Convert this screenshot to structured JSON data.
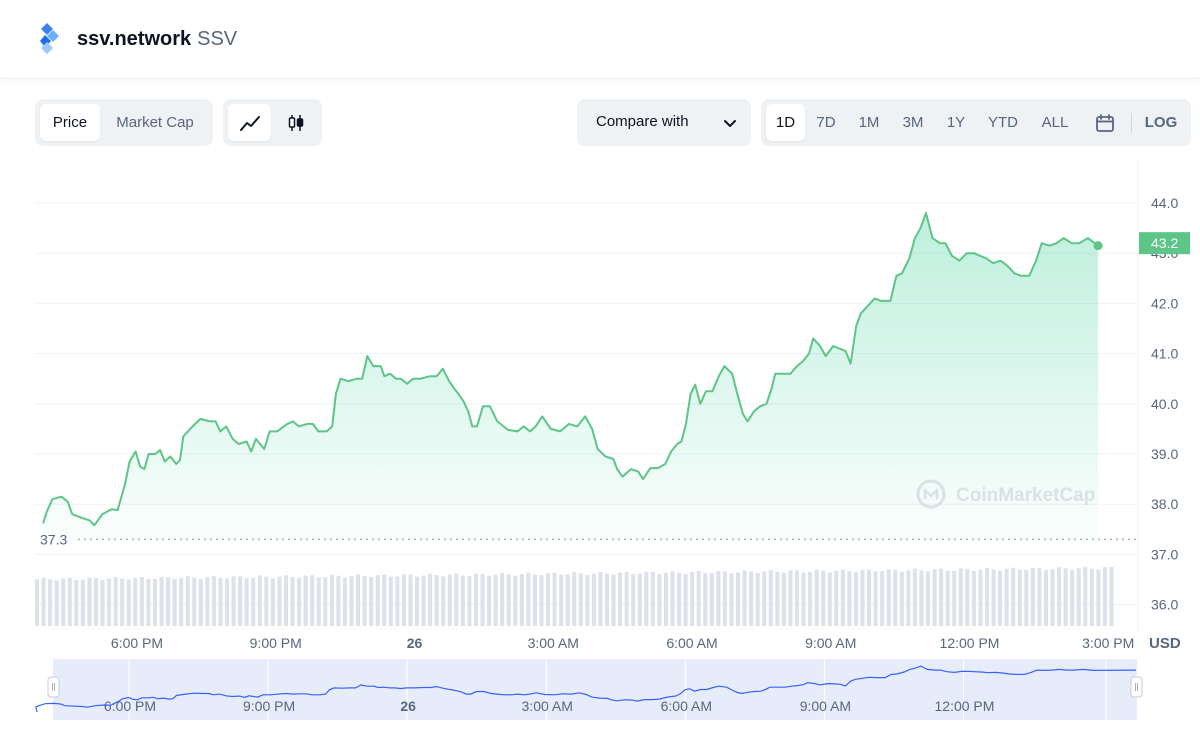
{
  "header": {
    "name": "ssv.network",
    "symbol": "SSV",
    "logo_icon": "ssv-diamond-logo-icon"
  },
  "toolbar": {
    "data_type_tabs": [
      {
        "label": "Price",
        "active": true
      },
      {
        "label": "Market Cap",
        "active": false
      }
    ],
    "chart_types": [
      {
        "icon": "line-chart-icon",
        "active": true
      },
      {
        "icon": "candlestick-icon",
        "active": false
      }
    ],
    "compare_label": "Compare with",
    "ranges": [
      "1D",
      "7D",
      "1M",
      "3M",
      "1Y",
      "YTD",
      "ALL"
    ],
    "active_range": "1D",
    "calendar_icon": "calendar-icon",
    "log_label": "LOG"
  },
  "chart_data": {
    "type": "area",
    "title": "",
    "xlabel": "",
    "ylabel": "USD",
    "unit": "USD",
    "y_ticks": [
      "44.0",
      "43.0",
      "42.0",
      "41.0",
      "40.0",
      "39.0",
      "38.0",
      "37.0",
      "36.0"
    ],
    "ylim": [
      35.6,
      44.9
    ],
    "x_ticks": [
      "6:00 PM",
      "9:00 PM",
      "26",
      "3:00 AM",
      "6:00 AM",
      "9:00 AM",
      "12:00 PM",
      "3:00 PM"
    ],
    "x_tick_hours": [
      18,
      21,
      24,
      27,
      30,
      33,
      36,
      39
    ],
    "current_price_label": "43.2",
    "open_price_label": "37.3",
    "open_price": 37.3,
    "watermark": "CoinMarketCap",
    "series": [
      {
        "values": [
          {
            "t": 15.97,
            "y": 37.62
          },
          {
            "t": 16.05,
            "y": 37.85
          },
          {
            "t": 16.17,
            "y": 38.1
          },
          {
            "t": 16.37,
            "y": 38.15
          },
          {
            "t": 16.5,
            "y": 38.05
          },
          {
            "t": 16.6,
            "y": 37.8
          },
          {
            "t": 16.8,
            "y": 37.73
          },
          {
            "t": 16.97,
            "y": 37.68
          },
          {
            "t": 17.08,
            "y": 37.58
          },
          {
            "t": 17.25,
            "y": 37.8
          },
          {
            "t": 17.45,
            "y": 37.9
          },
          {
            "t": 17.58,
            "y": 37.88
          },
          {
            "t": 17.74,
            "y": 38.4
          },
          {
            "t": 17.84,
            "y": 38.85
          },
          {
            "t": 17.97,
            "y": 39.05
          },
          {
            "t": 18.07,
            "y": 38.75
          },
          {
            "t": 18.16,
            "y": 38.7
          },
          {
            "t": 18.25,
            "y": 39.0
          },
          {
            "t": 18.4,
            "y": 39.0
          },
          {
            "t": 18.5,
            "y": 39.08
          },
          {
            "t": 18.6,
            "y": 38.85
          },
          {
            "t": 18.72,
            "y": 38.95
          },
          {
            "t": 18.85,
            "y": 38.8
          },
          {
            "t": 18.93,
            "y": 38.88
          },
          {
            "t": 19.0,
            "y": 39.35
          },
          {
            "t": 19.2,
            "y": 39.55
          },
          {
            "t": 19.37,
            "y": 39.7
          },
          {
            "t": 19.58,
            "y": 39.65
          },
          {
            "t": 19.7,
            "y": 39.65
          },
          {
            "t": 19.8,
            "y": 39.45
          },
          {
            "t": 19.93,
            "y": 39.55
          },
          {
            "t": 20.07,
            "y": 39.3
          },
          {
            "t": 20.2,
            "y": 39.2
          },
          {
            "t": 20.37,
            "y": 39.25
          },
          {
            "t": 20.47,
            "y": 39.05
          },
          {
            "t": 20.57,
            "y": 39.3
          },
          {
            "t": 20.75,
            "y": 39.1
          },
          {
            "t": 20.87,
            "y": 39.45
          },
          {
            "t": 21.03,
            "y": 39.45
          },
          {
            "t": 21.25,
            "y": 39.6
          },
          {
            "t": 21.37,
            "y": 39.65
          },
          {
            "t": 21.5,
            "y": 39.55
          },
          {
            "t": 21.68,
            "y": 39.6
          },
          {
            "t": 21.8,
            "y": 39.6
          },
          {
            "t": 21.92,
            "y": 39.45
          },
          {
            "t": 22.1,
            "y": 39.45
          },
          {
            "t": 22.22,
            "y": 39.55
          },
          {
            "t": 22.3,
            "y": 40.2
          },
          {
            "t": 22.4,
            "y": 40.5
          },
          {
            "t": 22.57,
            "y": 40.45
          },
          {
            "t": 22.75,
            "y": 40.5
          },
          {
            "t": 22.87,
            "y": 40.5
          },
          {
            "t": 22.98,
            "y": 40.95
          },
          {
            "t": 23.11,
            "y": 40.75
          },
          {
            "t": 23.27,
            "y": 40.75
          },
          {
            "t": 23.35,
            "y": 40.55
          },
          {
            "t": 23.47,
            "y": 40.6
          },
          {
            "t": 23.6,
            "y": 40.5
          },
          {
            "t": 23.7,
            "y": 40.5
          },
          {
            "t": 23.84,
            "y": 40.4
          },
          {
            "t": 23.97,
            "y": 40.5
          },
          {
            "t": 24.12,
            "y": 40.5
          },
          {
            "t": 24.34,
            "y": 40.55
          },
          {
            "t": 24.48,
            "y": 40.55
          },
          {
            "t": 24.61,
            "y": 40.7
          },
          {
            "t": 24.75,
            "y": 40.45
          },
          {
            "t": 24.86,
            "y": 40.3
          },
          {
            "t": 24.95,
            "y": 40.2
          },
          {
            "t": 25.06,
            "y": 40.05
          },
          {
            "t": 25.16,
            "y": 39.85
          },
          {
            "t": 25.25,
            "y": 39.55
          },
          {
            "t": 25.35,
            "y": 39.55
          },
          {
            "t": 25.48,
            "y": 39.95
          },
          {
            "t": 25.63,
            "y": 39.95
          },
          {
            "t": 25.79,
            "y": 39.65
          },
          {
            "t": 26.02,
            "y": 39.48
          },
          {
            "t": 26.23,
            "y": 39.45
          },
          {
            "t": 26.36,
            "y": 39.55
          },
          {
            "t": 26.5,
            "y": 39.45
          },
          {
            "t": 26.62,
            "y": 39.55
          },
          {
            "t": 26.76,
            "y": 39.75
          },
          {
            "t": 26.95,
            "y": 39.5
          },
          {
            "t": 27.15,
            "y": 39.45
          },
          {
            "t": 27.34,
            "y": 39.6
          },
          {
            "t": 27.52,
            "y": 39.55
          },
          {
            "t": 27.69,
            "y": 39.75
          },
          {
            "t": 27.84,
            "y": 39.5
          },
          {
            "t": 27.96,
            "y": 39.1
          },
          {
            "t": 28.13,
            "y": 38.95
          },
          {
            "t": 28.3,
            "y": 38.9
          },
          {
            "t": 28.38,
            "y": 38.7
          },
          {
            "t": 28.5,
            "y": 38.55
          },
          {
            "t": 28.68,
            "y": 38.7
          },
          {
            "t": 28.84,
            "y": 38.65
          },
          {
            "t": 28.94,
            "y": 38.5
          },
          {
            "t": 29.1,
            "y": 38.72
          },
          {
            "t": 29.26,
            "y": 38.72
          },
          {
            "t": 29.42,
            "y": 38.8
          },
          {
            "t": 29.55,
            "y": 39.05
          },
          {
            "t": 29.68,
            "y": 39.2
          },
          {
            "t": 29.77,
            "y": 39.25
          },
          {
            "t": 29.87,
            "y": 39.6
          },
          {
            "t": 29.97,
            "y": 40.2
          },
          {
            "t": 30.07,
            "y": 40.38
          },
          {
            "t": 30.18,
            "y": 40.0
          },
          {
            "t": 30.3,
            "y": 40.25
          },
          {
            "t": 30.44,
            "y": 40.25
          },
          {
            "t": 30.58,
            "y": 40.55
          },
          {
            "t": 30.7,
            "y": 40.75
          },
          {
            "t": 30.87,
            "y": 40.6
          },
          {
            "t": 30.98,
            "y": 40.2
          },
          {
            "t": 31.1,
            "y": 39.8
          },
          {
            "t": 31.2,
            "y": 39.65
          },
          {
            "t": 31.34,
            "y": 39.85
          },
          {
            "t": 31.47,
            "y": 39.95
          },
          {
            "t": 31.61,
            "y": 40.0
          },
          {
            "t": 31.72,
            "y": 40.3
          },
          {
            "t": 31.8,
            "y": 40.6
          },
          {
            "t": 31.95,
            "y": 40.6
          },
          {
            "t": 32.13,
            "y": 40.6
          },
          {
            "t": 32.27,
            "y": 40.75
          },
          {
            "t": 32.4,
            "y": 40.85
          },
          {
            "t": 32.53,
            "y": 41.0
          },
          {
            "t": 32.62,
            "y": 41.3
          },
          {
            "t": 32.77,
            "y": 41.15
          },
          {
            "t": 32.89,
            "y": 40.95
          },
          {
            "t": 33.05,
            "y": 41.15
          },
          {
            "t": 33.19,
            "y": 41.1
          },
          {
            "t": 33.32,
            "y": 41.05
          },
          {
            "t": 33.43,
            "y": 40.8
          },
          {
            "t": 33.55,
            "y": 41.55
          },
          {
            "t": 33.65,
            "y": 41.8
          },
          {
            "t": 33.8,
            "y": 41.95
          },
          {
            "t": 33.95,
            "y": 42.1
          },
          {
            "t": 34.09,
            "y": 42.05
          },
          {
            "t": 34.29,
            "y": 42.05
          },
          {
            "t": 34.42,
            "y": 42.55
          },
          {
            "t": 34.54,
            "y": 42.6
          },
          {
            "t": 34.7,
            "y": 42.9
          },
          {
            "t": 34.82,
            "y": 43.3
          },
          {
            "t": 34.94,
            "y": 43.5
          },
          {
            "t": 35.06,
            "y": 43.8
          },
          {
            "t": 35.2,
            "y": 43.3
          },
          {
            "t": 35.36,
            "y": 43.2
          },
          {
            "t": 35.48,
            "y": 43.2
          },
          {
            "t": 35.62,
            "y": 42.95
          },
          {
            "t": 35.78,
            "y": 42.85
          },
          {
            "t": 35.94,
            "y": 43.0
          },
          {
            "t": 36.1,
            "y": 43.0
          },
          {
            "t": 36.22,
            "y": 42.95
          },
          {
            "t": 36.36,
            "y": 42.9
          },
          {
            "t": 36.51,
            "y": 42.8
          },
          {
            "t": 36.67,
            "y": 42.85
          },
          {
            "t": 36.82,
            "y": 42.75
          },
          {
            "t": 36.97,
            "y": 42.6
          },
          {
            "t": 37.11,
            "y": 42.55
          },
          {
            "t": 37.29,
            "y": 42.55
          },
          {
            "t": 37.44,
            "y": 42.85
          },
          {
            "t": 37.56,
            "y": 43.2
          },
          {
            "t": 37.73,
            "y": 43.15
          },
          {
            "t": 37.88,
            "y": 43.2
          },
          {
            "t": 38.04,
            "y": 43.3
          },
          {
            "t": 38.21,
            "y": 43.2
          },
          {
            "t": 38.37,
            "y": 43.2
          },
          {
            "t": 38.56,
            "y": 43.3
          },
          {
            "t": 38.78,
            "y": 43.15
          }
        ]
      }
    ],
    "volume_bars": {
      "count": 165,
      "heights": [
        0.26,
        0.3,
        0.34
      ]
    },
    "navigator": {
      "x_ticks": [
        "6:00 PM",
        "9:00 PM",
        "26",
        "3:00 AM",
        "6:00 AM",
        "9:00 AM",
        "12:00 PM"
      ],
      "handle_label": "||"
    }
  }
}
